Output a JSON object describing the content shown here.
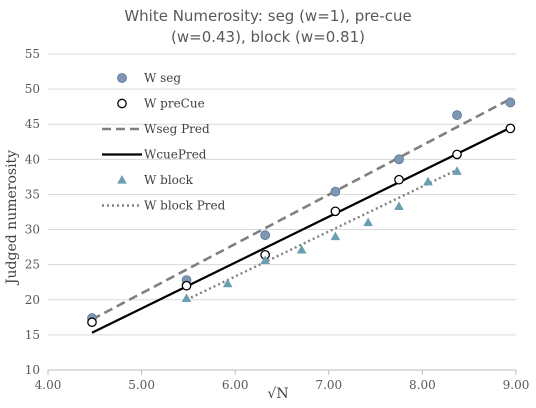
{
  "chart_data": {
    "type": "scatter",
    "title_lines": [
      "White Numerosity: seg (w=1), pre-cue",
      "(w=0.43), block (w=0.81)"
    ],
    "xlabel": "√N",
    "ylabel": "Judged numerosity",
    "xlim": [
      4.0,
      9.0
    ],
    "ylim": [
      10,
      55
    ],
    "x_ticks": [
      "4.00",
      "5.00",
      "6.00",
      "7.00",
      "8.00",
      "9.00"
    ],
    "y_ticks": [
      "10",
      "15",
      "20",
      "25",
      "30",
      "35",
      "40",
      "45",
      "50",
      "55"
    ],
    "grid": "horizontal",
    "legend_position": "top-left inside",
    "series": [
      {
        "name": "W seg",
        "kind": "markers",
        "marker": "circle-filled",
        "color": "#7f97b2",
        "x": [
          4.47,
          5.48,
          6.32,
          7.07,
          7.75,
          8.37,
          8.94
        ],
        "y": [
          17.4,
          22.8,
          29.2,
          35.4,
          40.0,
          46.3,
          48.1
        ]
      },
      {
        "name": "W preCue",
        "kind": "markers",
        "marker": "circle-open",
        "color": "#000000",
        "x": [
          4.47,
          5.48,
          6.32,
          7.07,
          7.75,
          8.37,
          8.94
        ],
        "y": [
          16.8,
          22.0,
          26.4,
          32.6,
          37.1,
          40.7,
          44.4
        ]
      },
      {
        "name": "Wseg Pred",
        "kind": "line",
        "dash": "dashed",
        "color": "#808080",
        "x": [
          4.47,
          8.94
        ],
        "y": [
          17.2,
          48.6
        ]
      },
      {
        "name": "WcuePred",
        "kind": "line",
        "dash": "solid",
        "color": "#000000",
        "x": [
          4.47,
          8.94
        ],
        "y": [
          15.3,
          44.5
        ]
      },
      {
        "name": "W block",
        "kind": "markers",
        "marker": "triangle",
        "color": "#6a9fb0",
        "x": [
          5.48,
          5.92,
          6.32,
          6.71,
          7.07,
          7.42,
          7.75,
          8.06,
          8.37
        ],
        "y": [
          20.2,
          22.3,
          25.6,
          27.1,
          29.0,
          31.0,
          33.3,
          36.8,
          38.3
        ]
      },
      {
        "name": "W block Pred",
        "kind": "line",
        "dash": "dotted",
        "color": "#808080",
        "x": [
          5.48,
          8.37
        ],
        "y": [
          20.0,
          38.5
        ]
      }
    ]
  }
}
